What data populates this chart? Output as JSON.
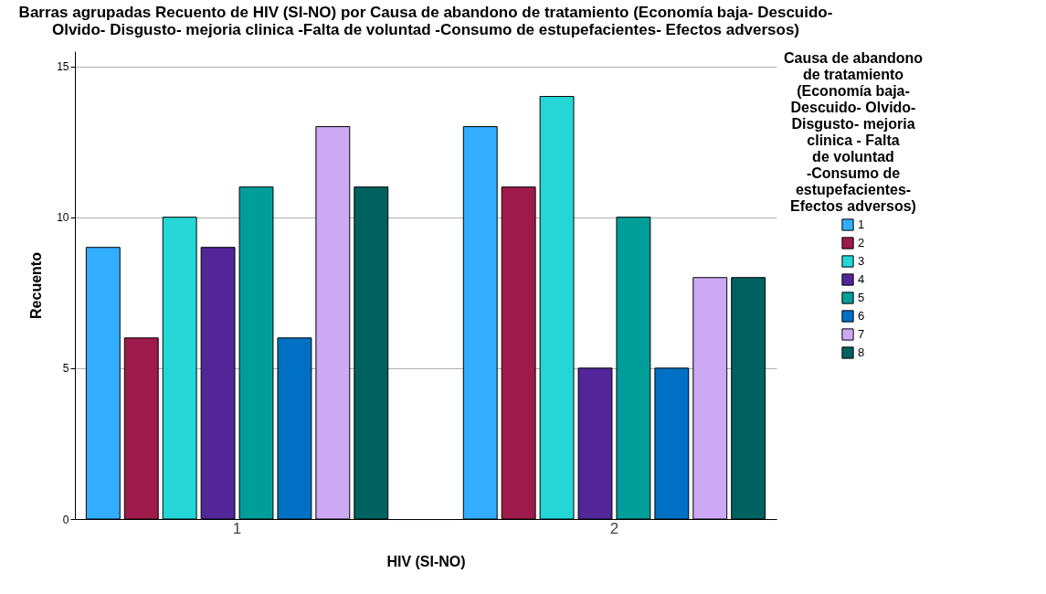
{
  "chart_data": {
    "type": "bar",
    "title": "Barras agrupadas Recuento de HIV (SI-NO) por Causa de abandono de tratamiento (Economía baja- Descuido- Olvido- Disgusto- mejoria clinica -Falta de voluntad -Consumo de estupefacientes- Efectos adversos)",
    "xlabel": "HIV (SI-NO)",
    "ylabel": "Recuento",
    "legend_title": "Causa de abandono de tratamiento (Economía baja- Descuido- Olvido- Disgusto- mejoria clinica - Falta de voluntad -Consumo de estupefacientes- Efectos adversos)",
    "categories": [
      "1",
      "2"
    ],
    "series": [
      {
        "name": "1",
        "color": "#33adff",
        "values": [
          9,
          13
        ]
      },
      {
        "name": "2",
        "color": "#9e1a4a",
        "values": [
          6,
          11
        ]
      },
      {
        "name": "3",
        "color": "#24d6d6",
        "values": [
          10,
          14
        ]
      },
      {
        "name": "4",
        "color": "#522599",
        "values": [
          9,
          5
        ]
      },
      {
        "name": "5",
        "color": "#009e99",
        "values": [
          11,
          10
        ]
      },
      {
        "name": "6",
        "color": "#0070c4",
        "values": [
          6,
          5
        ]
      },
      {
        "name": "7",
        "color": "#cca8f5",
        "values": [
          13,
          8
        ]
      },
      {
        "name": "8",
        "color": "#006161",
        "values": [
          11,
          8
        ]
      }
    ],
    "ylim": [
      0,
      15.5
    ],
    "yticks": [
      0,
      5,
      10,
      15
    ],
    "grid": "y",
    "legend": "right"
  }
}
